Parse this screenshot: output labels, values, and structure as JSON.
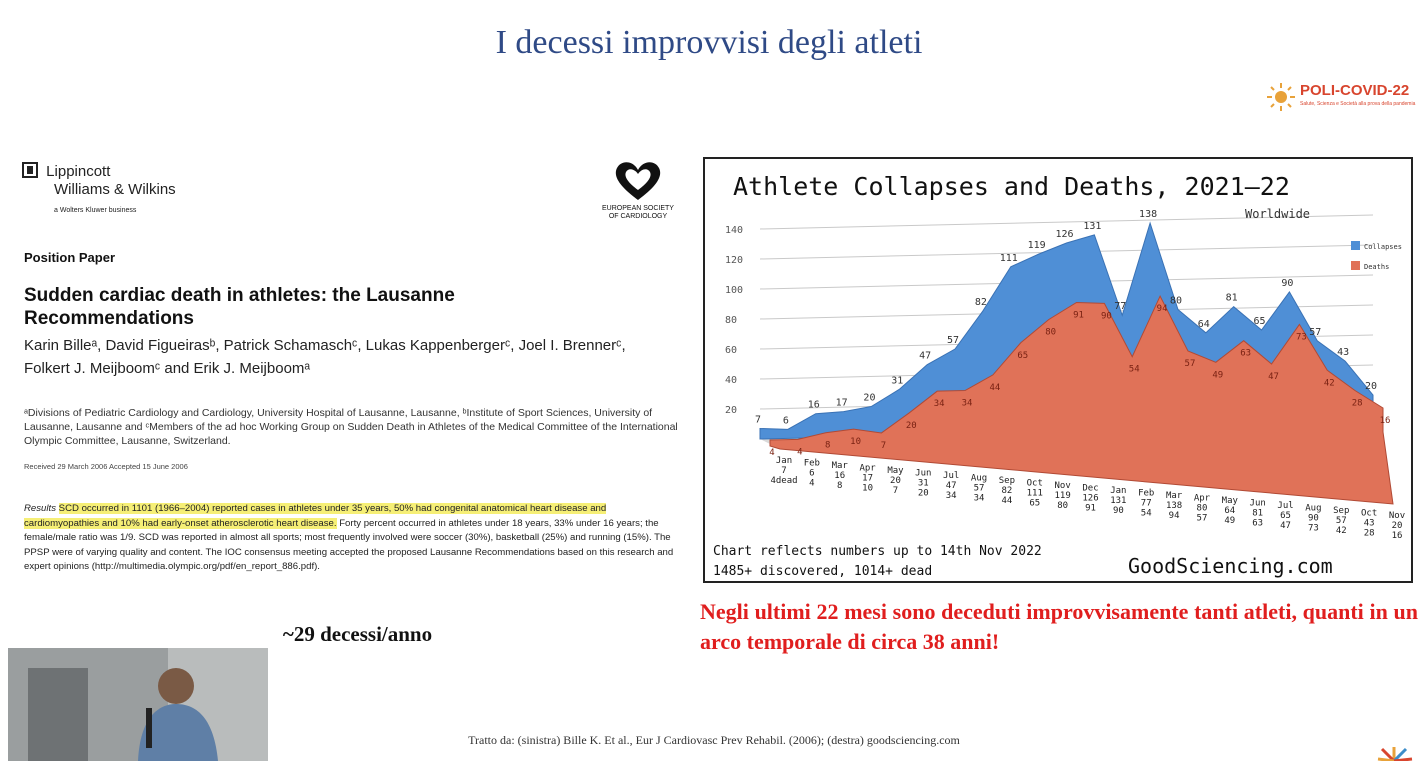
{
  "slide": {
    "title": "I decessi improvvisi degli atleti",
    "logo": {
      "name": "POLI-COVID-22",
      "tagline": "Salute, Scienza e Società alla prova della pandemia"
    },
    "deaths_per_year": "~29 decessi/anno",
    "note": "Negli ultimi 22 mesi sono deceduti improvvisamente tanti atleti, quanti in un arco temporale di circa 38 anni!",
    "source": "Tratto da: (sinistra) Bille K. Et al., Eur J Cardiovasc Prev Rehabil. (2006); (destra) goodsciencing.com"
  },
  "paper": {
    "publisher_line1": "Lippincott",
    "publisher_line2": "Williams & Wilkins",
    "publisher_line3": "a Wolters Kluwer business",
    "society": "EUROPEAN SOCIETY OF CARDIOLOGY",
    "type": "Position Paper",
    "title": "Sudden cardiac death in athletes: the Lausanne Recommendations",
    "authors": "Karin Billeᵃ, David Figueirasᵇ, Patrick Schamaschᶜ, Lukas Kappenbergerᶜ, Joel I. Brennerᶜ, Folkert J. Meijboomᶜ and Erik J. Meijboomᵃ",
    "affiliations": "ᵃDivisions of Pediatric Cardiology and Cardiology, University Hospital of Lausanne, Lausanne, ᵇInstitute of Sport Sciences, University of Lausanne, Lausanne and ᶜMembers of the ad hoc Working Group on Sudden Death in Athletes of the Medical Committee of the International Olympic Committee, Lausanne, Switzerland.",
    "received": "Received 29 March 2006 Accepted 15 June 2006",
    "results_label": "Results",
    "results_highlight": "SCD occurred in 1101 (1966–2004) reported cases in athletes under 35 years, 50% had congenital anatomical heart disease and cardiomyopathies and 10% had early-onset atherosclerotic heart disease.",
    "results_rest": "Forty percent occurred in athletes under 18 years, 33% under 16 years; the female/male ratio was 1/9. SCD was reported in almost all sports; most frequently involved were soccer (30%), basketball (25%) and running (15%). The PPSP were of varying quality and content. The IOC consensus meeting accepted the proposed Lausanne Recommendations based on this research and expert opinions (http://multimedia.olympic.org/pdf/en_report_886.pdf)."
  },
  "chart_data": {
    "type": "area",
    "title": "Athlete Collapses and Deaths, 2021—22",
    "subtitle": "Worldwide",
    "footnote_line1": "Chart reflects numbers up to 14th Nov 2022",
    "footnote_line2": "1485+ discovered, 1014+ dead",
    "brand": "GoodSciencing.com",
    "first_label_extra": "4dead",
    "categories": [
      "Jan",
      "Feb",
      "Mar",
      "Apr",
      "May",
      "Jun",
      "Jul",
      "Aug",
      "Sep",
      "Oct",
      "Nov",
      "Dec",
      "Jan",
      "Feb",
      "Mar",
      "Apr",
      "May",
      "Jun",
      "Jul",
      "Aug",
      "Sep",
      "Oct",
      "Nov"
    ],
    "series": [
      {
        "name": "Collapses",
        "color": "#4f8fd6",
        "values": [
          7,
          6,
          16,
          17,
          20,
          31,
          47,
          57,
          82,
          111,
          119,
          126,
          131,
          77,
          138,
          80,
          64,
          81,
          65,
          90,
          57,
          43,
          20
        ]
      },
      {
        "name": "Deaths",
        "color": "#e07258",
        "values": [
          4,
          4,
          8,
          10,
          7,
          20,
          34,
          34,
          44,
          65,
          80,
          91,
          90,
          54,
          94,
          57,
          49,
          63,
          47,
          73,
          42,
          28,
          16
        ]
      }
    ],
    "ylim": [
      0,
      140
    ],
    "yticks": [
      20,
      40,
      60,
      80,
      100,
      120,
      140
    ],
    "grid": true,
    "legend_position": "right"
  }
}
